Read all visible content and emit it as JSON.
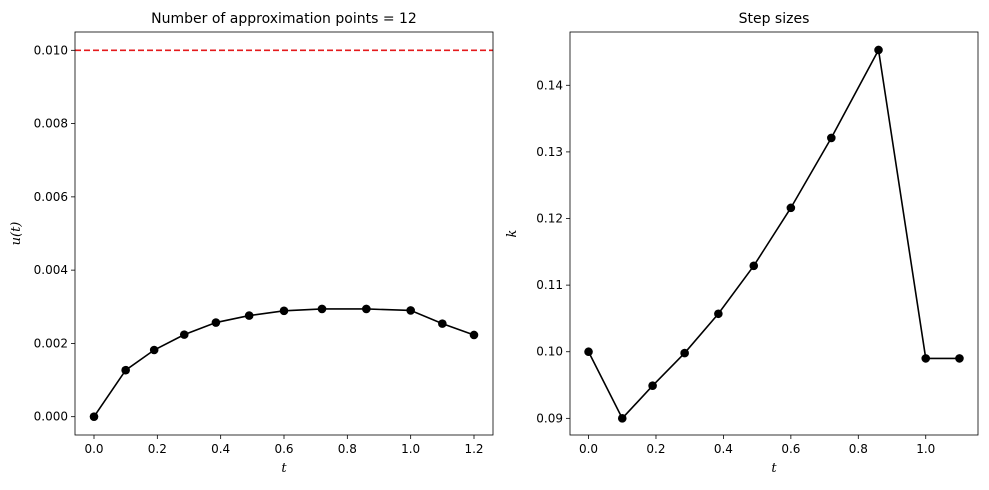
{
  "chart_data": [
    {
      "type": "line",
      "title": "Number of approximation points = 12",
      "xlabel": "t",
      "ylabel": "u(t)",
      "xlim": [
        -0.06,
        1.26
      ],
      "ylim": [
        -0.0005,
        0.0105
      ],
      "xticks": [
        0.0,
        0.2,
        0.4,
        0.6,
        0.8,
        1.0,
        1.2
      ],
      "xtick_labels": [
        "0.0",
        "0.2",
        "0.4",
        "0.6",
        "0.8",
        "1.0",
        "1.2"
      ],
      "yticks": [
        0.0,
        0.002,
        0.004,
        0.006,
        0.008,
        0.01
      ],
      "ytick_labels": [
        "0.000",
        "0.002",
        "0.004",
        "0.006",
        "0.008",
        "0.010"
      ],
      "grid": false,
      "series": [
        {
          "color": "#000000",
          "marker": "circle",
          "x": [
            0.0,
            0.1,
            0.19,
            0.285,
            0.385,
            0.49,
            0.6,
            0.72,
            0.86,
            1.0,
            1.1,
            1.2
          ],
          "y": [
            0.0,
            0.00127,
            0.00182,
            0.00224,
            0.00257,
            0.00276,
            0.00289,
            0.00294,
            0.00294,
            0.0029,
            0.00254,
            0.00223
          ]
        }
      ],
      "hlines": [
        {
          "y": 0.01,
          "color": "#e41a1c",
          "style": "dashed"
        }
      ]
    },
    {
      "type": "line",
      "title": "Step sizes",
      "xlabel": "t",
      "ylabel": "k",
      "xlim": [
        -0.055,
        1.155
      ],
      "ylim": [
        0.0875,
        0.148
      ],
      "xticks": [
        0.0,
        0.2,
        0.4,
        0.6,
        0.8,
        1.0
      ],
      "xtick_labels": [
        "0.0",
        "0.2",
        "0.4",
        "0.6",
        "0.8",
        "1.0"
      ],
      "yticks": [
        0.09,
        0.1,
        0.11,
        0.12,
        0.13,
        0.14
      ],
      "ytick_labels": [
        "0.09",
        "0.10",
        "0.11",
        "0.12",
        "0.13",
        "0.14"
      ],
      "grid": false,
      "series": [
        {
          "color": "#000000",
          "marker": "circle",
          "x": [
            0.0,
            0.1,
            0.19,
            0.285,
            0.385,
            0.49,
            0.6,
            0.72,
            0.86,
            1.0,
            1.1
          ],
          "y": [
            0.1,
            0.09,
            0.0949,
            0.0998,
            0.1057,
            0.1129,
            0.1216,
            0.1321,
            0.1453,
            0.099,
            0.099
          ]
        }
      ]
    }
  ]
}
